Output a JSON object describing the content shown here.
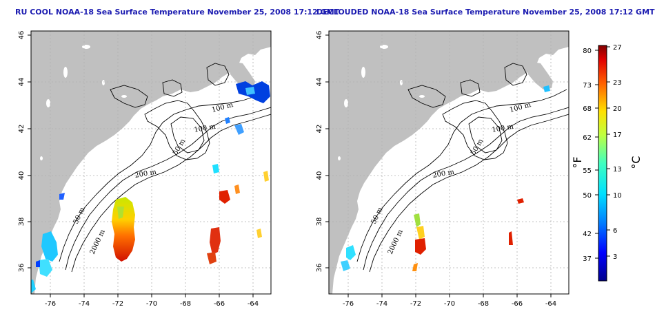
{
  "maps": [
    {
      "id": "left",
      "title": "RU COOL NOAA-18 Sea Surface Temperature November 25, 2008 17:12 GMT",
      "x_ticks": [
        "-76",
        "-74",
        "-72",
        "-70",
        "-68",
        "-66",
        "-64"
      ],
      "y_ticks": [
        "36",
        "38",
        "40",
        "42",
        "44",
        "46"
      ],
      "contour_labels": [
        "100 m",
        "100 m",
        "50 m",
        "200 m",
        "50 m",
        "2000 m"
      ]
    },
    {
      "id": "right",
      "title": "DECLOUDED NOAA-18 Sea Surface Temperature November 25, 2008 17:12 GMT",
      "x_ticks": [
        "-76",
        "-74",
        "-72",
        "-70",
        "-68",
        "-66",
        "-64"
      ],
      "y_ticks": [
        "36",
        "38",
        "40",
        "42",
        "44",
        "46"
      ],
      "contour_labels": [
        "100 m",
        "100 m",
        "50 m",
        "200 m",
        "50 m",
        "2000 m"
      ]
    }
  ],
  "colorbar": {
    "fahrenheit_ticks": [
      "80",
      "73",
      "68",
      "62",
      "55",
      "50",
      "42",
      "37"
    ],
    "celsius_ticks": [
      "27",
      "23",
      "20",
      "17",
      "13",
      "10",
      "6",
      "3"
    ],
    "fahrenheit_unit": "°F",
    "celsius_unit": "°C"
  },
  "colors": {
    "land": "#c0c0c0",
    "title": "#1a1ab0",
    "grid": "#b0b0b0"
  }
}
